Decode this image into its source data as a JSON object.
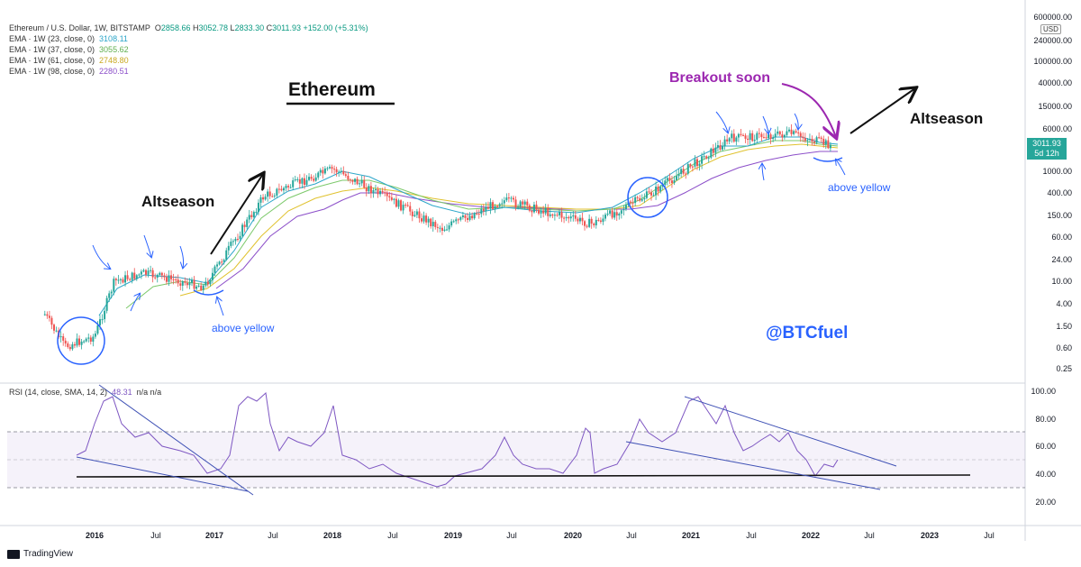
{
  "header": {
    "symbol": "Ethereum / U.S. Dollar, 1W, BITSTAMP",
    "ohlc": {
      "o_label": "O",
      "o": "2858.66",
      "h_label": "H",
      "h": "3052.78",
      "l_label": "L",
      "l": "2833.30",
      "c_label": "C",
      "c": "3011.93",
      "change": "+152.00 (+5.31%)"
    },
    "indicators": [
      {
        "label": "EMA · 1W (23, close, 0)",
        "value": "3108.11",
        "color": "#2ca6c9"
      },
      {
        "label": "EMA · 1W (37, close, 0)",
        "value": "3055.62",
        "color": "#7cc96b"
      },
      {
        "label": "EMA · 1W (61, close, 0)",
        "value": "2748.80",
        "color": "#e0c22e"
      },
      {
        "label": "EMA · 1W (98, close, 0)",
        "value": "2280.51",
        "color": "#8c4fc9"
      }
    ],
    "currency": "USD"
  },
  "price_tag": {
    "price": "3011.93",
    "countdown": "5d 12h"
  },
  "rsi_header": {
    "label": "RSI (14, close, SMA, 14, 2)",
    "value": "48.31",
    "extra": "n/a  n/a"
  },
  "annotations": {
    "title": "Ethereum",
    "altseason_left": "Altseason",
    "altseason_right": "Altseason",
    "breakout": "Breakout soon",
    "above_yellow_left": "above yellow",
    "above_yellow_right": "above yellow",
    "handle": "@BTCfuel"
  },
  "footer": {
    "brand": "TradingView"
  },
  "colors": {
    "ema23": "#2ca6c9",
    "ema37": "#7cc96b",
    "ema61": "#e0c22e",
    "ema98": "#8c4fc9",
    "up": "#26a69a",
    "down": "#ef5350",
    "rsi": "#7e57c2",
    "annotation_blue": "#2962ff",
    "breakout": "#9c27b0"
  },
  "chart_data": [
    {
      "type": "candlestick",
      "title": "Ethereum / U.S. Dollar, 1W, BITSTAMP",
      "y_scale": "log",
      "y_ticks": [
        "600000.00",
        "240000.00",
        "100000.00",
        "40000.00",
        "15000.00",
        "6000.00",
        "1000.00",
        "400.00",
        "150.00",
        "60.00",
        "24.00",
        "10.00",
        "4.00",
        "1.50",
        "0.60",
        "0.25"
      ],
      "x_ticks": [
        "2016",
        "Jul",
        "2017",
        "Jul",
        "2018",
        "Jul",
        "2019",
        "Jul",
        "2020",
        "Jul",
        "2021",
        "Jul",
        "2022",
        "Jul",
        "2023",
        "Jul"
      ],
      "price_path_approx": [
        {
          "x": "2015-08",
          "y": 2.5
        },
        {
          "x": "2015-10",
          "y": 0.65
        },
        {
          "x": "2016-01",
          "y": 1.0
        },
        {
          "x": "2016-03",
          "y": 10
        },
        {
          "x": "2016-06",
          "y": 14
        },
        {
          "x": "2016-12",
          "y": 8
        },
        {
          "x": "2017-06",
          "y": 350
        },
        {
          "x": "2018-01",
          "y": 1100
        },
        {
          "x": "2018-12",
          "y": 90
        },
        {
          "x": "2019-06",
          "y": 300
        },
        {
          "x": "2020-03",
          "y": 110
        },
        {
          "x": "2020-09",
          "y": 400
        },
        {
          "x": "2021-05",
          "y": 4000
        },
        {
          "x": "2021-11",
          "y": 4800
        },
        {
          "x": "2022-03",
          "y": 3011.93
        }
      ]
    },
    {
      "type": "line",
      "title": "RSI (14, close, SMA, 14, 2)",
      "y_ticks": [
        "100.00",
        "80.00",
        "60.00",
        "40.00",
        "20.00"
      ],
      "ylim": [
        20,
        100
      ],
      "band": [
        30,
        70
      ],
      "last_value": 48.31
    }
  ]
}
